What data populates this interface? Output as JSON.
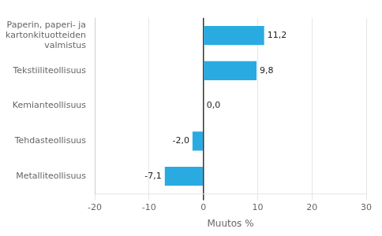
{
  "chart_data": {
    "type": "bar",
    "orientation": "horizontal",
    "categories": [
      "Metalliteollisuus",
      "Tehdasteollisuus",
      "Kemianteollisuus",
      "Tekstiiliteollisuus",
      "Paperin, paperi- ja kartonkituotteiden valmistus"
    ],
    "values": [
      -7.1,
      -2.0,
      0.0,
      9.8,
      11.2
    ],
    "value_labels": [
      "-7,1",
      "-2,0",
      "0,0",
      "9,8",
      "11,2"
    ],
    "data_labels": true,
    "color": "#29ABE2",
    "xlim": [
      -20,
      30
    ],
    "xticks": [
      -20,
      -10,
      0,
      10,
      20,
      30
    ],
    "xlabel": "Muutos %",
    "grid": true
  }
}
